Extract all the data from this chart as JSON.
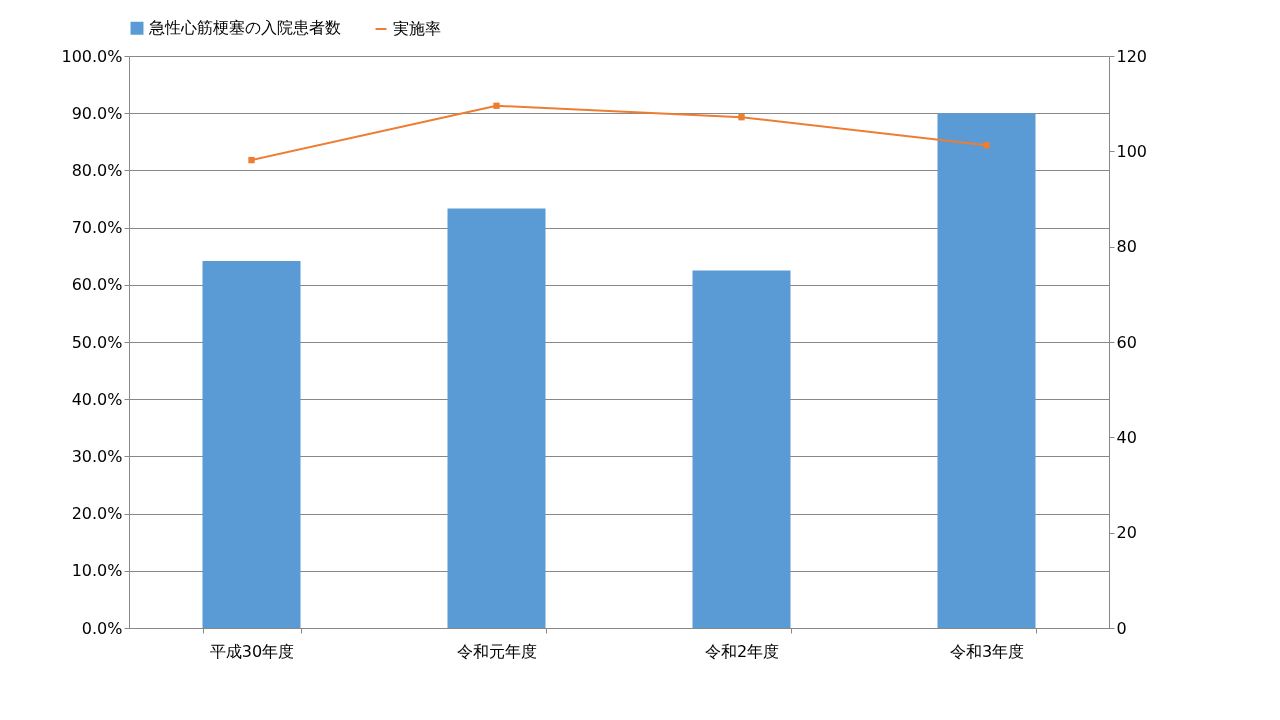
{
  "chart_data": {
    "type": "bar",
    "categories": [
      "平成30年度",
      "令和元年度",
      "令和2年度",
      "令和3年度"
    ],
    "series": [
      {
        "name": "急性心筋梗塞の入院患者数",
        "color": "#5b9bd5",
        "values": [
          77,
          88,
          75,
          108
        ],
        "axis": "y2"
      },
      {
        "name": "実施率",
        "type": "line",
        "color": "#ed7d31",
        "values": [
          81.8,
          91.3,
          89.3,
          84.4
        ],
        "marker": "square",
        "line_style": "solid"
      }
    ],
    "ylim": [
      0,
      100
    ],
    "yticks": [
      {
        "value": 0,
        "label": "0.0%"
      },
      {
        "value": 10,
        "label": "10.0%"
      },
      {
        "value": 20,
        "label": "20.0%"
      },
      {
        "value": 30,
        "label": "30.0%"
      },
      {
        "value": 40,
        "label": "40.0%"
      },
      {
        "value": 50,
        "label": "50.0%"
      },
      {
        "value": 60,
        "label": "60.0%"
      },
      {
        "value": 70,
        "label": "70.0%"
      },
      {
        "value": 80,
        "label": "80.0%"
      },
      {
        "value": 90,
        "label": "90.0%"
      },
      {
        "value": 100,
        "label": "100.0%"
      }
    ],
    "y2lim": [
      0,
      120
    ],
    "y2ticks": [
      0,
      20,
      40,
      60,
      80,
      100,
      120
    ],
    "grid": "y",
    "legend": "top"
  }
}
